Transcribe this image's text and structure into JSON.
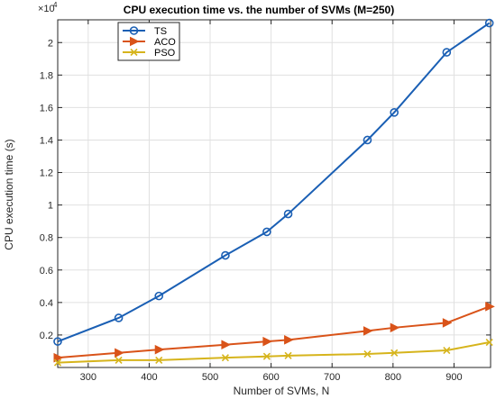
{
  "chart_data": {
    "type": "line",
    "title": "CPU execution time vs. the number of SVMs (M=250)",
    "xlabel": "Number of SVMs, N",
    "ylabel": "CPU execution time (s)",
    "y_exponent_label": "×10",
    "y_exponent_power": "4",
    "xlim": [
      250,
      960
    ],
    "ylim": [
      0,
      2.14
    ],
    "y_scale_note": "y values in units of 10^4 s",
    "x_ticks": [
      300,
      400,
      500,
      600,
      700,
      800,
      900
    ],
    "x_tick_labels": [
      "300",
      "400",
      "500",
      "600",
      "700",
      "800",
      "900"
    ],
    "y_ticks": [
      0.2,
      0.4,
      0.6,
      0.8,
      1.0,
      1.2,
      1.4,
      1.6,
      1.8,
      2.0
    ],
    "y_tick_labels": [
      "0.2",
      "0.4",
      "0.6",
      "0.8",
      "1",
      "1.2",
      "1.4",
      "1.6",
      "1.8",
      "2"
    ],
    "grid": true,
    "legend_position": "top-left",
    "series": [
      {
        "name": "TS",
        "color": "#1a5fb4",
        "marker": "circle",
        "x": [
          250,
          350,
          416,
          525,
          593,
          628,
          758,
          802,
          888,
          958
        ],
        "y": [
          0.16,
          0.305,
          0.44,
          0.69,
          0.835,
          0.945,
          1.4,
          1.57,
          1.94,
          2.12
        ]
      },
      {
        "name": "ACO",
        "color": "#d95319",
        "marker": "triangle-right",
        "x": [
          250,
          350,
          416,
          525,
          593,
          628,
          758,
          802,
          888,
          958
        ],
        "y": [
          0.06,
          0.09,
          0.11,
          0.14,
          0.16,
          0.17,
          0.225,
          0.245,
          0.275,
          0.375
        ]
      },
      {
        "name": "PSO",
        "color": "#d6b41c",
        "marker": "x",
        "x": [
          250,
          350,
          416,
          525,
          593,
          628,
          758,
          802,
          888,
          958
        ],
        "y": [
          0.03,
          0.045,
          0.045,
          0.06,
          0.068,
          0.073,
          0.083,
          0.09,
          0.105,
          0.155
        ]
      }
    ]
  }
}
